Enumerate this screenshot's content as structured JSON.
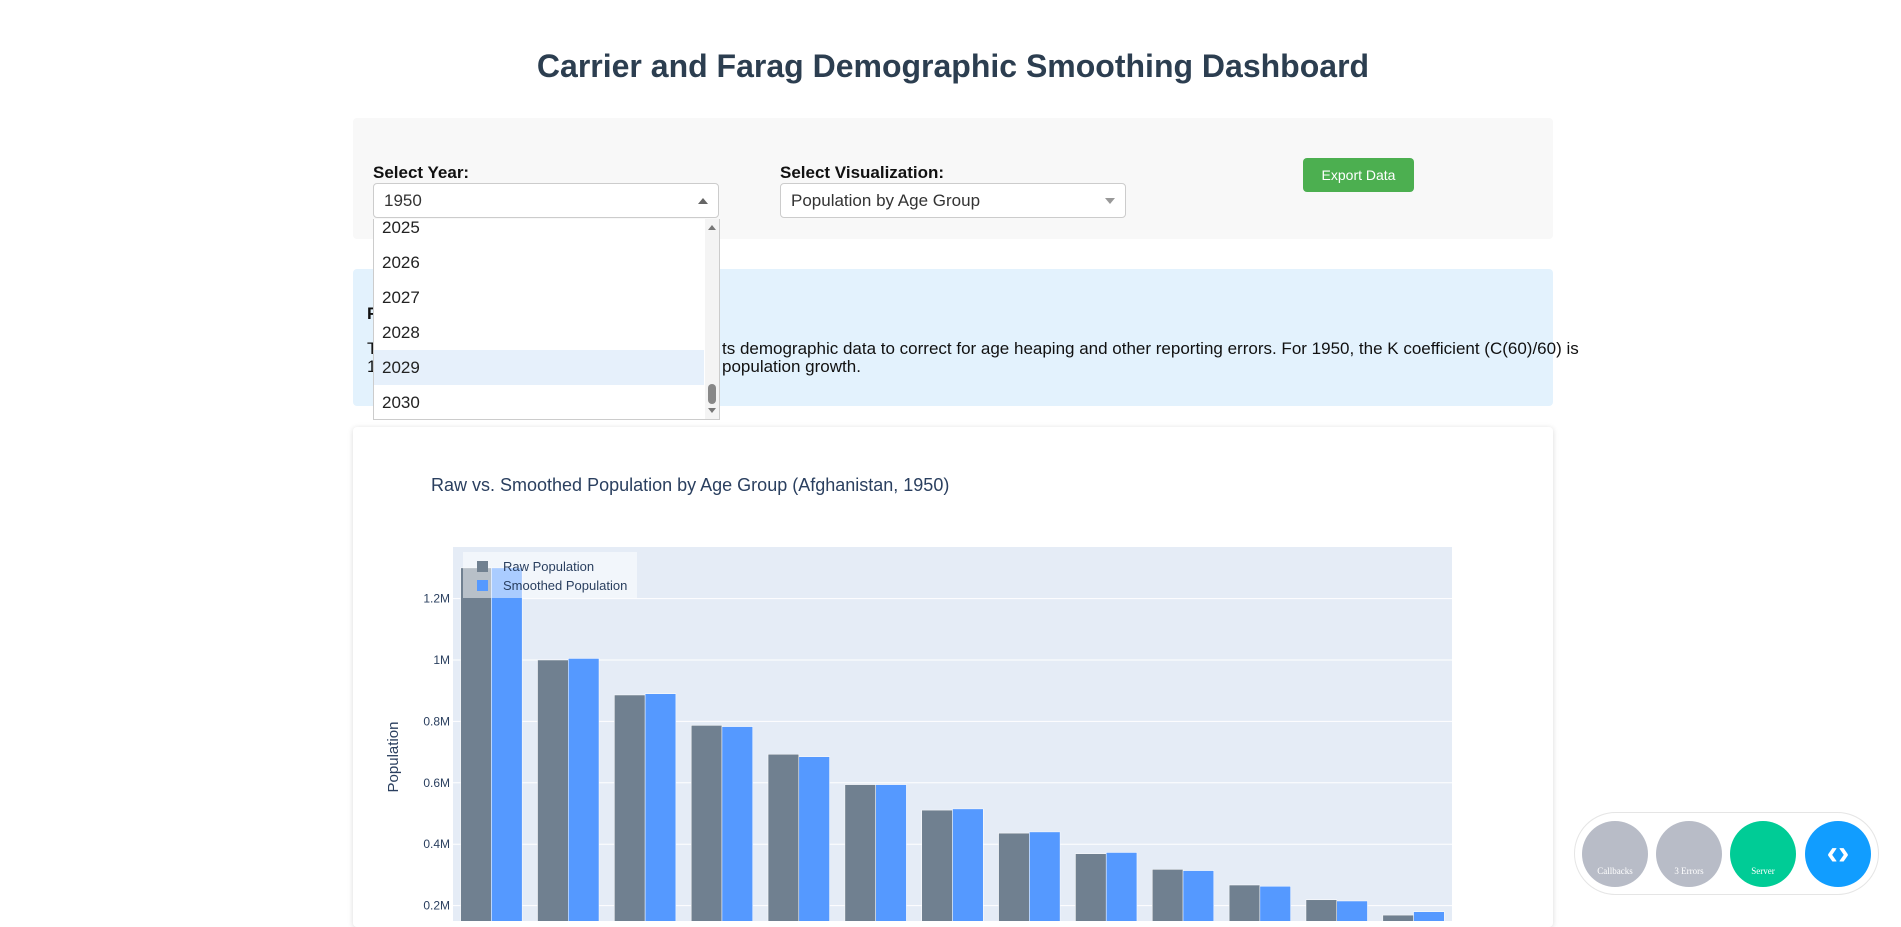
{
  "header": {
    "title": "Carrier and Farag Demographic Smoothing Dashboard"
  },
  "controls": {
    "year_label": "Select Year:",
    "year_value": "1950",
    "year_options": [
      "2025",
      "2026",
      "2027",
      "2028",
      "2029",
      "2030"
    ],
    "visualization_label": "Select Visualization:",
    "visualization_value": "Population by Age Group",
    "export_button": "Export Data"
  },
  "info": {
    "heading_fragment": "F",
    "line1_start": "T",
    "line1_fragment": "ts demographic data to correct for age heaping and other reporting errors. For 1950, the K coefficient (C(60)/60) is",
    "line2_start": "1",
    "line2_fragment": "population growth."
  },
  "chart_data": {
    "type": "bar",
    "title": "Raw vs. Smoothed Population by Age Group (Afghanistan, 1950)",
    "y_label": "Population",
    "categories": [
      null,
      null,
      null,
      null,
      null,
      null,
      null,
      null,
      null,
      null,
      null,
      null,
      null
    ],
    "series": [
      {
        "name": "Raw Population",
        "color": "#708090",
        "values": [
          1300000,
          1000000,
          886000,
          787000,
          693000,
          594000,
          511000,
          436000,
          369000,
          318000,
          267000,
          219000,
          169000
        ]
      },
      {
        "name": "Smoothed Population",
        "color": "#5599ff",
        "values": [
          1300000,
          1005000,
          890000,
          783000,
          685000,
          594000,
          515000,
          440000,
          373000,
          314000,
          263000,
          215000,
          180000
        ]
      }
    ],
    "ylim": [
      0,
      1368000
    ],
    "yticks": [
      {
        "value": 200000,
        "label": "0.2M"
      },
      {
        "value": 400000,
        "label": "0.4M"
      },
      {
        "value": 600000,
        "label": "0.6M"
      },
      {
        "value": 800000,
        "label": "0.8M"
      },
      {
        "value": 1000000,
        "label": "1M"
      },
      {
        "value": 1200000,
        "label": "1.2M"
      }
    ],
    "grid": true,
    "legend": "top-left"
  },
  "debug_menu": {
    "items": [
      "Callbacks",
      "3 Errors",
      "Server"
    ]
  }
}
